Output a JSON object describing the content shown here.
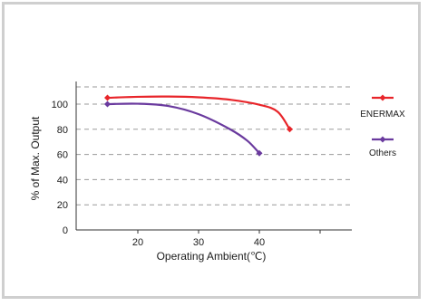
{
  "chart_data": {
    "type": "line",
    "xlabel": "Operating Ambient(℃)",
    "ylabel": "% of Max. Output",
    "xlim": [
      10,
      52
    ],
    "ylim": [
      0,
      112
    ],
    "xticks": [
      20,
      30,
      40
    ],
    "yticks": [
      0,
      20,
      40,
      60,
      80,
      100
    ],
    "grid": "horizontal dashed",
    "legend_position": "right",
    "series": [
      {
        "name": "ENERMAX",
        "color": "#e8252a",
        "marker": "diamond",
        "x": [
          15,
          20,
          25,
          30,
          35,
          40,
          43,
          45
        ],
        "y": [
          105,
          105.8,
          106,
          105.4,
          103.6,
          99.5,
          94,
          80
        ]
      },
      {
        "name": "Others",
        "color": "#6a3a9e",
        "marker": "diamond",
        "x": [
          15,
          20,
          25,
          30,
          35,
          38,
          40
        ],
        "y": [
          100,
          100.3,
          98.5,
          92,
          80.5,
          71,
          61
        ]
      }
    ]
  }
}
